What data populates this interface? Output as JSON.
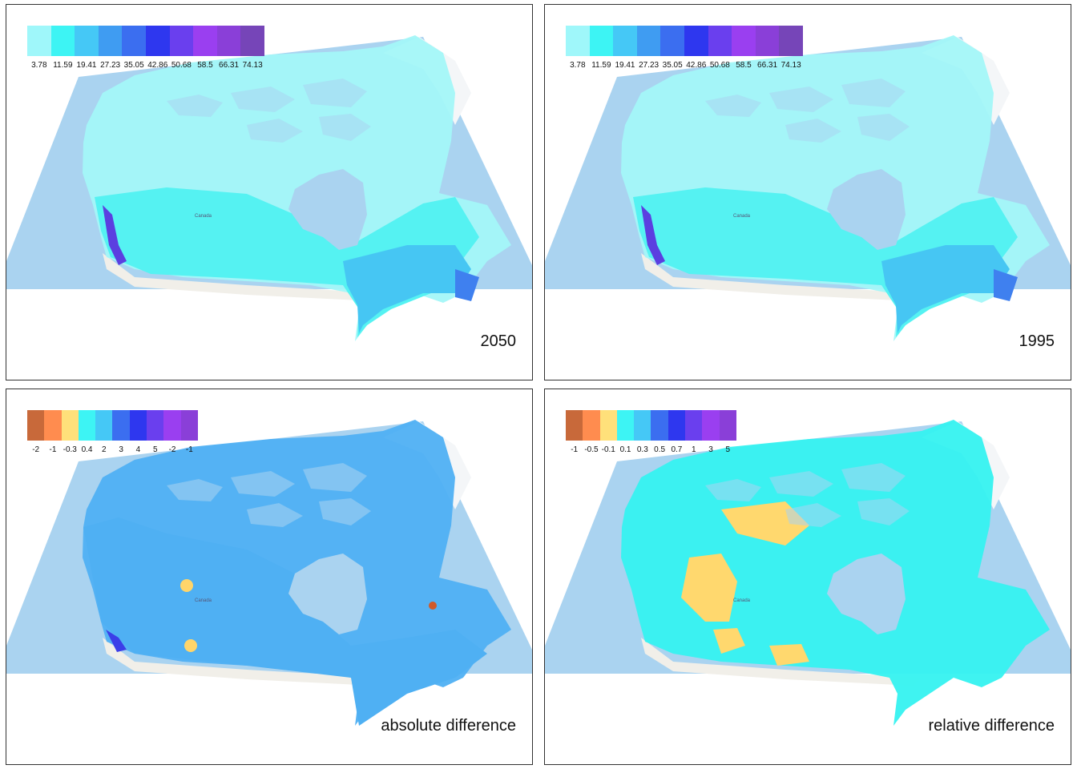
{
  "panels": [
    {
      "label": "2050",
      "legend": {
        "labels": [
          "3.78",
          "11.59",
          "19.41",
          "27.23",
          "35.05",
          "42.86",
          "50.68",
          "58.5",
          "66.31",
          "74.13"
        ],
        "colors": [
          "#9ff7fa",
          "#3df4f4",
          "#45c8f6",
          "#3f9cf2",
          "#3b6ef0",
          "#2e37ef",
          "#6a3fee",
          "#9a3ff0",
          "#8a3fd8",
          "#7645b8"
        ]
      },
      "fill_colors": [
        "#a3f7f8",
        "#55f2f2",
        "#46c6f3",
        "#3f80ef",
        "#5b3fe0"
      ]
    },
    {
      "label": "1995",
      "legend": {
        "labels": [
          "3.78",
          "11.59",
          "19.41",
          "27.23",
          "35.05",
          "42.86",
          "50.68",
          "58.5",
          "66.31",
          "74.13"
        ],
        "colors": [
          "#9ff7fa",
          "#3df4f4",
          "#45c8f6",
          "#3f9cf2",
          "#3b6ef0",
          "#2e37ef",
          "#6a3fee",
          "#9a3ff0",
          "#8a3fd8",
          "#7645b8"
        ]
      },
      "fill_colors": [
        "#a3f7f8",
        "#55f2f2",
        "#46c6f3",
        "#3f80ef",
        "#5b3fe0"
      ]
    },
    {
      "label": "absolute difference",
      "legend": {
        "labels": [
          "-2",
          "-1",
          "-0.3",
          "0.4",
          "2",
          "3",
          "4",
          "5",
          "-2",
          "-1"
        ],
        "colors": [
          "#c8693a",
          "#ff8c4f",
          "#ffe07a",
          "#3df4f4",
          "#45c8f6",
          "#3b6ef0",
          "#2e37ef",
          "#6a3fee",
          "#9a3ff0",
          "#8a3fd8"
        ]
      },
      "fill_colors": [
        "#4fb0f3",
        "#3f80ef",
        "#45c8f6",
        "#ffd56a",
        "#3b3ee8"
      ]
    },
    {
      "label": "relative difference",
      "legend": {
        "labels": [
          "-1",
          "-0.5",
          "-0.1",
          "0.1",
          "0.3",
          "0.5",
          "0.7",
          "1",
          "3",
          "5"
        ],
        "colors": [
          "#c8693a",
          "#ff8c4f",
          "#ffe07a",
          "#3df4f4",
          "#45c8f6",
          "#3b6ef0",
          "#2e37ef",
          "#6a3fee",
          "#9a3ff0",
          "#8a3fd8"
        ]
      },
      "fill_colors": [
        "#35f2f0",
        "#ffd86e",
        "#45c8f6",
        "#3df4f4",
        "#ffe07a"
      ]
    }
  ],
  "basemap": {
    "ocean_color": "#aad3f0",
    "land_color": "#f1efe9",
    "greenland_color": "#f4f6f8",
    "map_place_label": "Canada"
  }
}
